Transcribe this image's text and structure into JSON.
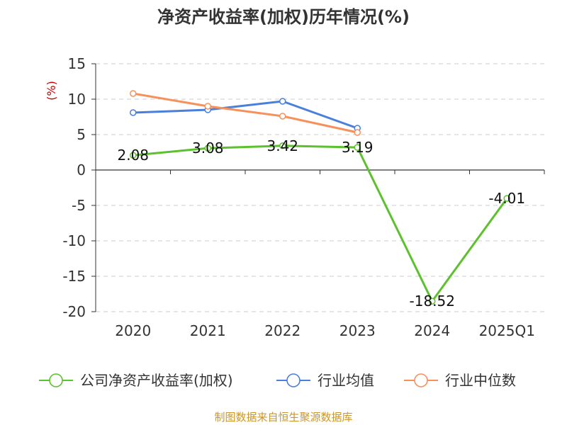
{
  "chart_data": {
    "type": "line",
    "title": "净资产收益率(加权)历年情况(%)",
    "ylabel": "(%)",
    "xlabel": "",
    "categories": [
      "2020",
      "2021",
      "2022",
      "2023",
      "2024",
      "2025Q1"
    ],
    "ylim": [
      -20,
      15
    ],
    "yticks": [
      15,
      10,
      5,
      0,
      -5,
      -10,
      -15,
      -20
    ],
    "grid": true,
    "legend_position": "bottom",
    "series": [
      {
        "name": "公司净资产收益率(加权)",
        "color": "#5cc12c",
        "values": [
          2.08,
          3.08,
          3.42,
          3.19,
          -18.52,
          -4.01
        ],
        "labels": [
          "2.08",
          "3.08",
          "3.42",
          "3.19",
          "-18.52",
          "-4.01"
        ]
      },
      {
        "name": "行业均值",
        "color": "#4a7fdc",
        "values": [
          8.1,
          8.5,
          9.7,
          5.9,
          null,
          null
        ]
      },
      {
        "name": "行业中位数",
        "color": "#f7915c",
        "values": [
          10.8,
          9.0,
          7.6,
          5.3,
          null,
          null
        ]
      }
    ]
  },
  "source": "制图数据来自恒生聚源数据库"
}
